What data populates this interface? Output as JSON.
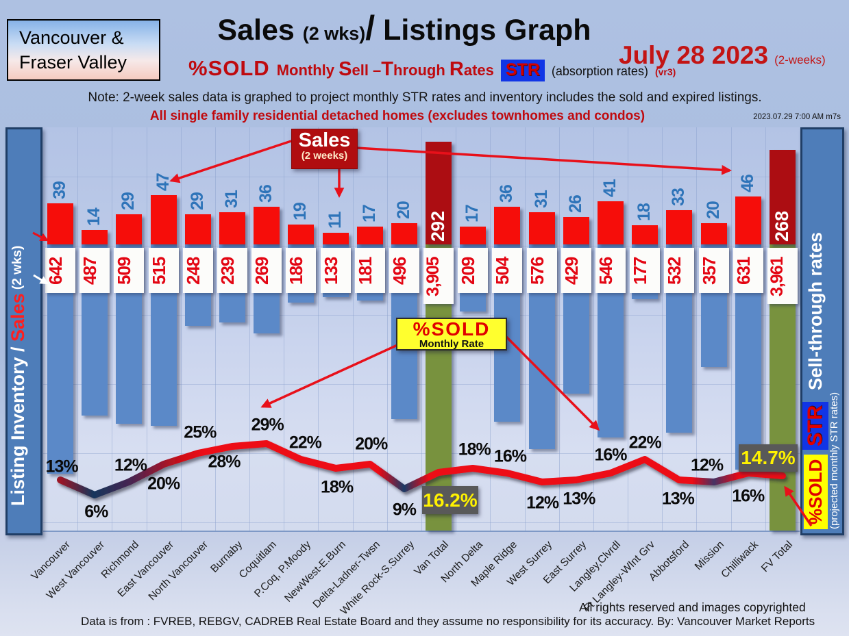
{
  "header": {
    "region_line1": "Vancouver &",
    "region_line2": "Fraser Valley",
    "title_sales": "Sales ",
    "title_wks": "(2 wks)",
    "title_slash": "/",
    "title_rest": " Listings Graph",
    "subtitle_pctsold": "%SOLD",
    "subtitle_rates_parts": [
      "Monthly ",
      "S",
      "ell –",
      "T",
      "hrough ",
      "R",
      "ates"
    ],
    "subtitle_str": "STR",
    "subtitle_absorption": "(absorption rates)",
    "subtitle_vr": "(vr3)",
    "date_main": "July 28  2023",
    "date_sub": "(2-weeks)",
    "note": "Note: 2-week sales data is graphed to project monthly STR rates and inventory includes the sold and expired listings.",
    "scope": "All single family residential detached homes (excludes townhomes and condos)",
    "timestamp": "2023.07.29 7:00 AM m7s"
  },
  "left_axis": {
    "part1": "Listing Inventory / ",
    "part2": "Sales",
    "part3": " (2  wks)"
  },
  "right_axis": {
    "badge_pctsold": "%SOLD",
    "badge_str": "STR",
    "title": "Sell-through rates",
    "subtitle": " (projected monthly STR rates)"
  },
  "callouts": {
    "sales_title": "Sales",
    "sales_sub": "(2 weeks)",
    "pctsold_title": "%SOLD",
    "pctsold_sub": "Monthly Rate",
    "van_total_rate": "16.2%",
    "fv_total_rate": "14.7%"
  },
  "footer": {
    "rights": "All rights reserved and  images copyrighted",
    "source": "Data is from : FVREB, REBGV, CADREB Real Estate Board and they assume no responsibility for its accuracy. By: Vancouver Market Reports"
  },
  "colors": {
    "sales_bar": "#F60D0A",
    "total_sales_bar": "#AC0D12",
    "inventory_bar": "#5B89C8",
    "total_inventory_bar": "#78923E",
    "line_red": "#ED0713",
    "line_navy": "#17375E",
    "rate_box_gray": "#595959",
    "rate_text_yellow": "#FFF200",
    "sidebar_blue": "#4E7DB9",
    "str_badge_blue": "#1135E6",
    "accent_yellow": "#FFFF00"
  },
  "chart_data": {
    "type": "combo bar+line",
    "title": "Sales (2 wks)/ Listings Graph",
    "subtitle": "%SOLD Monthly Sell-Through Rates (absorption rates)",
    "date": "July 28 2023",
    "categories": [
      "Vancouver",
      "West Vancouver",
      "Richmond",
      "East Vancouver",
      "North Vancouver",
      "Burnaby",
      "Coquitlam",
      "P.Coq, P.Moody",
      "NewWest-E.Burn",
      "Delta-Ladner-Twsn",
      "White Rock-S.Surrey",
      "Van Total",
      "North Delta",
      "Maple Ridge",
      "West Surrey",
      "East Surrey",
      "Langley,Clvrdl",
      "Ft Langley-WInt Grv",
      "Abbotsford",
      "Mission",
      "Chilliwack",
      "FV Total"
    ],
    "total_indices": [
      11,
      21
    ],
    "series": [
      {
        "name": "Sales (2 weeks)",
        "type": "bar",
        "direction": "up",
        "values": [
          39,
          14,
          29,
          47,
          29,
          31,
          36,
          19,
          11,
          17,
          20,
          292,
          17,
          36,
          31,
          26,
          41,
          18,
          33,
          20,
          46,
          268
        ]
      },
      {
        "name": "Listing Inventory (includes sold and expired listings)",
        "type": "bar",
        "direction": "down",
        "values": [
          642,
          487,
          509,
          515,
          248,
          239,
          269,
          186,
          133,
          181,
          496,
          3905,
          209,
          504,
          576,
          429,
          546,
          177,
          532,
          357,
          631,
          3961
        ],
        "display": [
          "642",
          "487",
          "509",
          "515",
          "248",
          "239",
          "269",
          "186",
          "133",
          "181",
          "496",
          "3,905",
          "209",
          "504",
          "576",
          "429",
          "546",
          "177",
          "532",
          "357",
          "631",
          "3,961"
        ]
      },
      {
        "name": "%SOLD Monthly Sell-Through Rate (STR)",
        "type": "line",
        "values": [
          13,
          6,
          12,
          20,
          25,
          28,
          29,
          22,
          18,
          20,
          9,
          16.2,
          18,
          16,
          12,
          13,
          16,
          22,
          13,
          12,
          16,
          14.7
        ],
        "display": [
          "13%",
          "6%",
          "12%",
          "20%",
          "25%",
          "28%",
          "29%",
          "22%",
          "18%",
          "20%",
          "9%",
          "16.2%",
          "18%",
          "16%",
          "12%",
          "13%",
          "16%",
          "22%",
          "13%",
          "12%",
          "16%",
          "14.7%"
        ]
      }
    ],
    "grid": true,
    "legend_position": "none"
  }
}
